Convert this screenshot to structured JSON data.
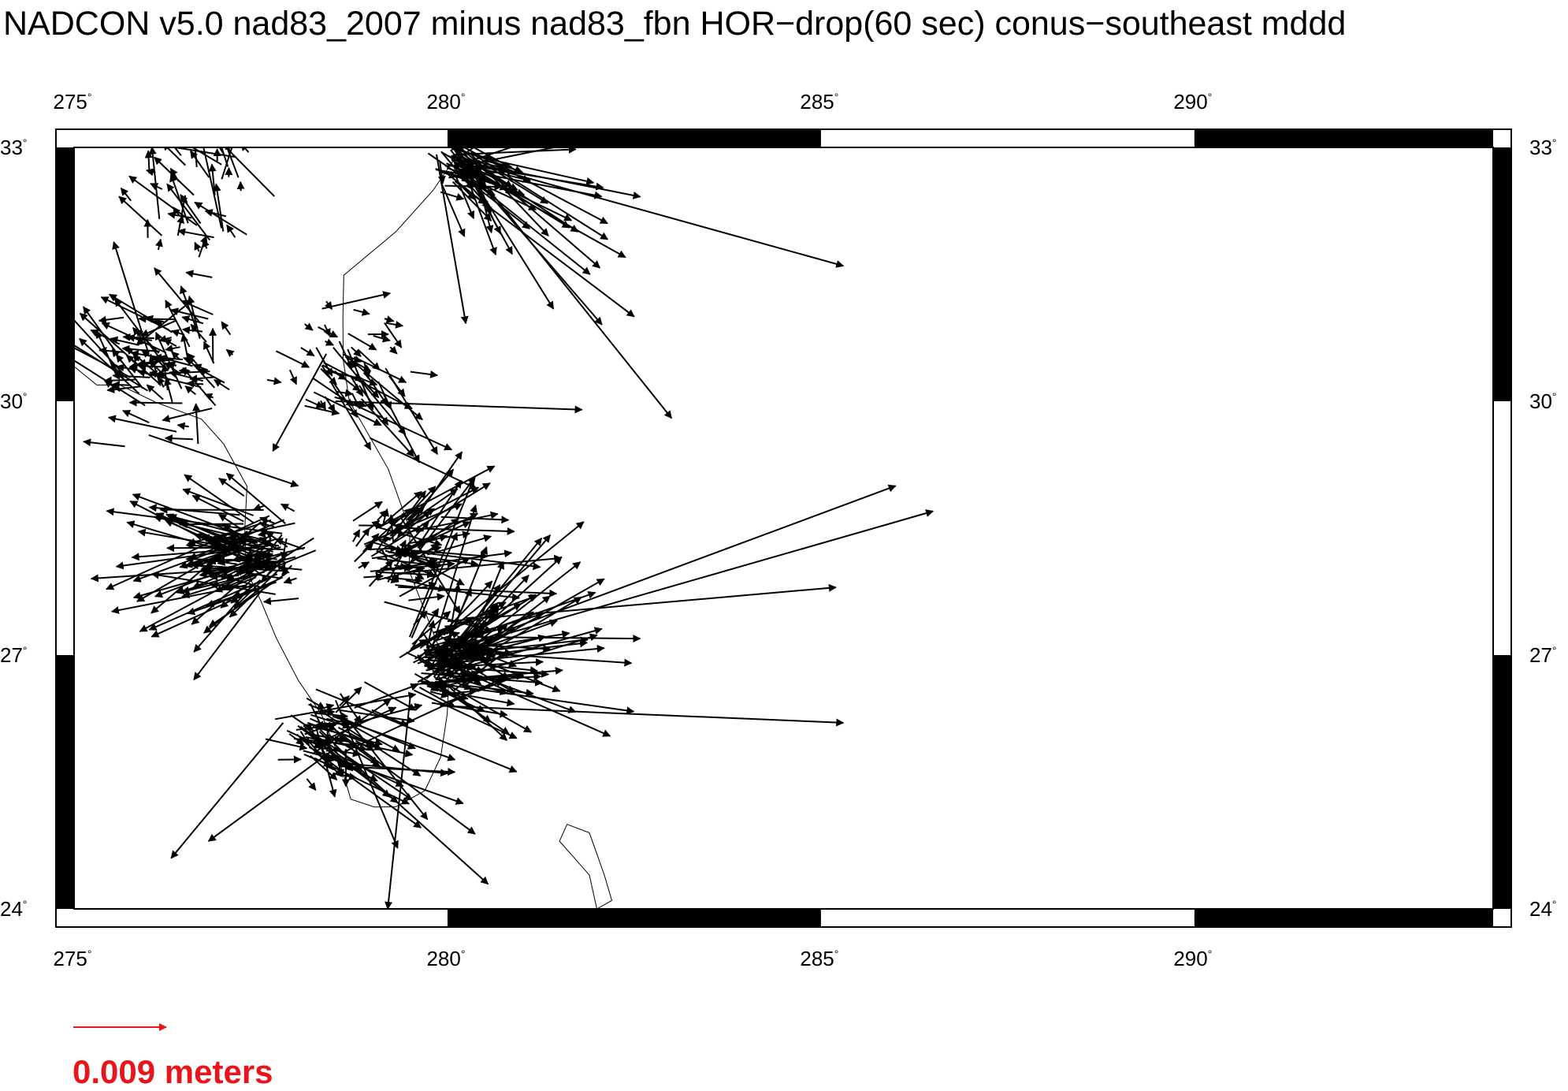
{
  "title": "NADCON v5.0 nad83_2007 minus nad83_fbn HOR−drop(60 sec) conus−southeast mddd",
  "map": {
    "lon_range": [
      275,
      294
    ],
    "lat_range": [
      24,
      33
    ],
    "lon_ticks": [
      {
        "value": 275,
        "label": "275"
      },
      {
        "value": 280,
        "label": "280"
      },
      {
        "value": 285,
        "label": "285"
      },
      {
        "value": 290,
        "label": "290"
      }
    ],
    "lat_ticks": [
      {
        "value": 24,
        "label": "24"
      },
      {
        "value": 27,
        "label": "27"
      },
      {
        "value": 30,
        "label": "30"
      },
      {
        "value": 33,
        "label": "33"
      }
    ],
    "degree_symbol": "°",
    "vector_color": "#000000",
    "coast_color": "#000000"
  },
  "scale": {
    "label": "0.009 meters",
    "color": "#e8161b"
  }
}
